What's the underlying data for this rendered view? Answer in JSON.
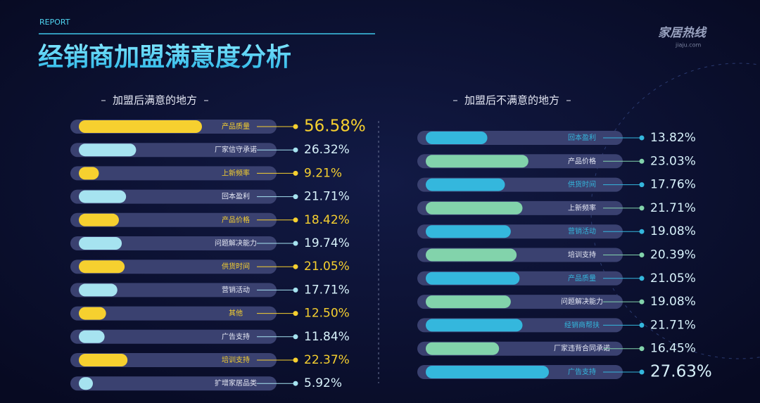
{
  "header": {
    "tag": "REPORT",
    "title": "经销商加盟满意度分析",
    "logo": "家居热线",
    "logo_sub": "jiaju.com"
  },
  "chart_data": [
    {
      "type": "bar",
      "title": "加盟后满意的地方",
      "palette": [
        "#f6d02f",
        "#a6e3f0"
      ],
      "categories": [
        "产品质量",
        "厂家信守承诺",
        "上新频率",
        "回本盈利",
        "产品价格",
        "问题解决能力",
        "供货时间",
        "营销活动",
        "其他",
        "广告支持",
        "培训支持",
        "扩增家居品类"
      ],
      "values": [
        56.58,
        26.32,
        9.21,
        21.71,
        18.42,
        19.74,
        21.05,
        17.71,
        12.5,
        11.84,
        22.37,
        5.92
      ],
      "value_labels": [
        "56.58%",
        "26.32%",
        "9.21%",
        "21.71%",
        "18.42%",
        "19.74%",
        "21.05%",
        "17.71%",
        "12.50%",
        "11.84%",
        "22.37%",
        "5.92%"
      ]
    },
    {
      "type": "bar",
      "title": "加盟后不满意的地方",
      "palette": [
        "#34b7dd",
        "#82d3ab"
      ],
      "categories": [
        "回本盈利",
        "产品价格",
        "供货时间",
        "上新频率",
        "营销活动",
        "培训支持",
        "产品质量",
        "问题解决能力",
        "经销商帮扶",
        "厂家违背合同承诺",
        "广告支持"
      ],
      "values": [
        13.82,
        23.03,
        17.76,
        21.71,
        19.08,
        20.39,
        21.05,
        19.08,
        21.71,
        16.45,
        27.63
      ],
      "value_labels": [
        "13.82%",
        "23.03%",
        "17.76%",
        "21.71%",
        "19.08%",
        "20.39%",
        "21.05%",
        "19.08%",
        "21.71%",
        "16.45%",
        "27.63%"
      ]
    }
  ]
}
